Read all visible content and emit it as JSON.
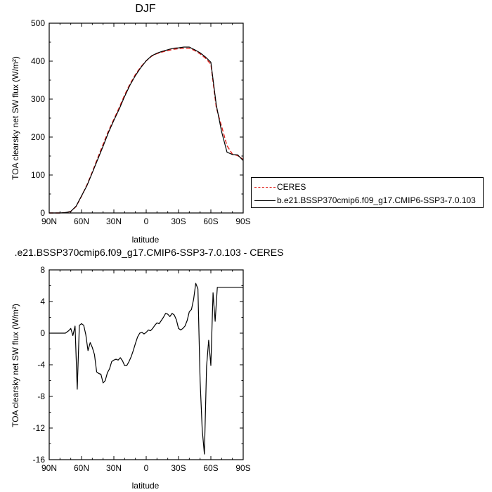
{
  "colors": {
    "ceres": "#e0201b",
    "model": "#000000"
  },
  "chart_data": [
    {
      "type": "line",
      "title": "DJF",
      "xlabel": "latitude",
      "ylabel": "TOA clearsky net SW flux (W/m²)",
      "xlim": [
        90,
        -90
      ],
      "ylim": [
        0,
        500
      ],
      "xticks": [
        90,
        60,
        30,
        0,
        -30,
        -60,
        -90
      ],
      "xtick_labels": [
        "90N",
        "60N",
        "30N",
        "0",
        "30S",
        "60S",
        "90S"
      ],
      "yticks": [
        0,
        100,
        200,
        300,
        400,
        500
      ],
      "ytick_labels": [
        "0",
        "100",
        "200",
        "300",
        "400",
        "500"
      ],
      "legend": "right",
      "series": [
        {
          "name": "CERES",
          "style": "dashed",
          "color": "#e0201b",
          "x": [
            90,
            85,
            80,
            75,
            70,
            65,
            60,
            55,
            50,
            45,
            40,
            35,
            30,
            25,
            20,
            15,
            10,
            5,
            0,
            -5,
            -10,
            -15,
            -20,
            -25,
            -30,
            -35,
            -40,
            -45,
            -50,
            -55,
            -60,
            -65,
            -70,
            -75,
            -80,
            -85,
            -90
          ],
          "y": [
            0,
            0,
            0,
            1,
            4,
            17,
            44,
            74,
            108,
            145,
            181,
            216,
            247,
            278,
            311,
            340,
            365,
            385,
            401,
            413,
            420,
            424,
            428,
            431,
            433,
            434,
            434,
            428,
            419,
            408,
            392,
            278,
            228,
            177,
            155,
            151,
            141
          ]
        },
        {
          "name": "b.e21.BSSP370cmip6.f09_g17.CMIP6-SSP3-7.0.103",
          "style": "solid",
          "color": "#000000",
          "x": [
            90,
            85,
            80,
            75,
            70,
            65,
            60,
            55,
            50,
            45,
            40,
            35,
            30,
            25,
            20,
            15,
            10,
            5,
            0,
            -5,
            -10,
            -15,
            -20,
            -25,
            -30,
            -35,
            -40,
            -45,
            -50,
            -55,
            -60,
            -65,
            -70,
            -75,
            -80,
            -85,
            -90
          ],
          "y": [
            0,
            0,
            0,
            1,
            4,
            18,
            45,
            72,
            106,
            141,
            176,
            212,
            244,
            274,
            307,
            337,
            362,
            383,
            401,
            414,
            421,
            426,
            430,
            434,
            435,
            437,
            437,
            430,
            422,
            411,
            397,
            285,
            214,
            160,
            154,
            153,
            138
          ]
        }
      ]
    },
    {
      "type": "line",
      "title": ".e21.BSSP370cmip6.f09_g17.CMIP6-SSP3-7.0.103 - CERES",
      "xlabel": "latitude",
      "ylabel": "TOA clearsky net SW flux (W/m²)",
      "xlim": [
        90,
        -90
      ],
      "ylim": [
        -16,
        8
      ],
      "xticks": [
        90,
        60,
        30,
        0,
        -30,
        -60,
        -90
      ],
      "xtick_labels": [
        "90N",
        "60N",
        "30N",
        "0",
        "30S",
        "60S",
        "90S"
      ],
      "yticks": [
        -16,
        -12,
        -8,
        -4,
        0,
        4,
        8
      ],
      "ytick_labels": [
        "-16",
        "-12",
        "-8",
        "-4",
        "0",
        "4",
        "8"
      ],
      "series": [
        {
          "color": "#000000",
          "x": [
            90,
            80,
            75,
            72,
            70,
            68,
            66,
            64,
            62,
            60,
            58,
            56,
            54,
            52,
            50,
            48,
            46,
            44,
            42,
            40,
            38,
            36,
            34,
            32,
            30,
            28,
            26,
            24,
            22,
            20,
            18,
            16,
            14,
            12,
            10,
            8,
            6,
            4,
            2,
            0,
            -2,
            -4,
            -6,
            -8,
            -10,
            -12,
            -14,
            -16,
            -18,
            -20,
            -22,
            -24,
            -26,
            -28,
            -30,
            -32,
            -34,
            -36,
            -38,
            -40,
            -42,
            -44,
            -46,
            -48,
            -50,
            -52,
            -54,
            -56,
            -58,
            -60,
            -62,
            -64,
            -66,
            -68,
            -70,
            -72,
            -74,
            -76,
            -78,
            -80,
            -82,
            -84,
            -86,
            -88,
            -90
          ],
          "y": [
            0,
            0,
            0,
            0.3,
            0.6,
            -0.3,
            0.9,
            -7.1,
            1.0,
            1.2,
            1.0,
            -0.2,
            -2.2,
            -1.2,
            -1.8,
            -2.7,
            -4.9,
            -5.1,
            -5.2,
            -6.3,
            -6.0,
            -5.0,
            -4.5,
            -3.6,
            -3.4,
            -3.3,
            -3.4,
            -3.1,
            -3.5,
            -4.1,
            -4.1,
            -3.6,
            -3.0,
            -2.2,
            -1.3,
            -0.5,
            0.0,
            0.1,
            -0.1,
            0.1,
            0.4,
            0.3,
            0.6,
            1.0,
            1.3,
            1.2,
            1.6,
            2.0,
            2.5,
            2.4,
            2.1,
            2.5,
            2.3,
            1.7,
            0.6,
            0.4,
            0.6,
            0.9,
            1.6,
            2.7,
            3.0,
            4.3,
            6.3,
            5.6,
            -6.0,
            -12.2,
            -15.3,
            -4.2,
            -0.9,
            -4.1,
            5.1,
            1.5,
            5.8,
            5.8,
            5.8,
            5.8,
            5.8,
            5.8,
            5.8,
            5.8,
            5.8,
            5.8,
            5.8,
            5.8,
            5.8
          ]
        }
      ]
    }
  ]
}
